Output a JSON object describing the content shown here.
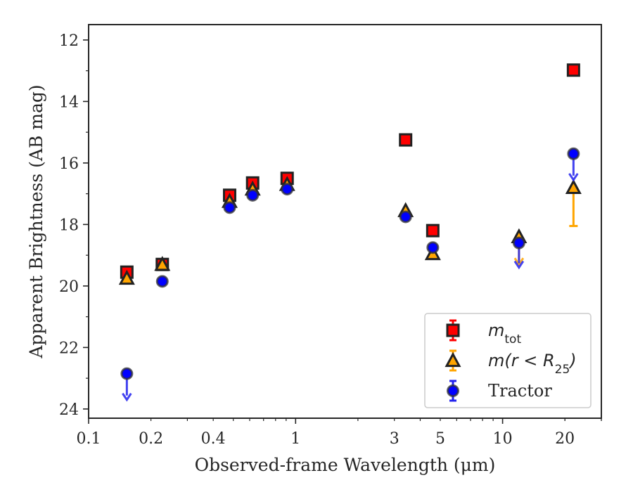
{
  "chart_data": {
    "type": "scatter",
    "xlabel": "Observed-frame Wavelength (μm)",
    "ylabel": "Apparent Brightness (AB mag)",
    "xscale": "log",
    "yaxis_inverted": true,
    "xlim": [
      0.1,
      30
    ],
    "ylim": [
      24.3,
      11.5
    ],
    "x_ticks": [
      {
        "value": 0.1,
        "label": "0.1"
      },
      {
        "value": 0.2,
        "label": "0.2"
      },
      {
        "value": 0.4,
        "label": "0.4"
      },
      {
        "value": 1,
        "label": "1"
      },
      {
        "value": 3,
        "label": "3"
      },
      {
        "value": 5,
        "label": "5"
      },
      {
        "value": 10,
        "label": "10"
      },
      {
        "value": 20,
        "label": "20"
      }
    ],
    "y_ticks": [
      {
        "value": 12,
        "label": "12"
      },
      {
        "value": 14,
        "label": "14"
      },
      {
        "value": 16,
        "label": "16"
      },
      {
        "value": 18,
        "label": "18"
      },
      {
        "value": 20,
        "label": "20"
      },
      {
        "value": 22,
        "label": "22"
      },
      {
        "value": 24,
        "label": "24"
      }
    ],
    "grid": false,
    "legend_position": "lower-right",
    "series": [
      {
        "name_main": "m",
        "name_sub": "tot",
        "marker": "square",
        "color": "#ff0000",
        "points": [
          {
            "x": 0.153,
            "y": 19.55
          },
          {
            "x": 0.227,
            "y": 19.3
          },
          {
            "x": 0.48,
            "y": 17.05
          },
          {
            "x": 0.62,
            "y": 16.65
          },
          {
            "x": 0.91,
            "y": 16.5
          },
          {
            "x": 3.4,
            "y": 15.25
          },
          {
            "x": 4.6,
            "y": 18.2
          },
          {
            "x": 22,
            "y": 12.98
          }
        ]
      },
      {
        "name_main": "m(r < R",
        "name_sub": "25",
        "name_end": ")",
        "marker": "triangle",
        "color": "#ffa500",
        "points": [
          {
            "x": 0.153,
            "y": 19.75
          },
          {
            "x": 0.227,
            "y": 19.3
          },
          {
            "x": 0.48,
            "y": 17.25
          },
          {
            "x": 0.62,
            "y": 16.85
          },
          {
            "x": 0.91,
            "y": 16.7
          },
          {
            "x": 3.4,
            "y": 17.55
          },
          {
            "x": 4.6,
            "y": 18.95
          },
          {
            "x": 12,
            "y": 18.4,
            "upper_limit_to": 19.3
          },
          {
            "x": 22,
            "y": 16.8,
            "err_low": 16.8,
            "err_high": 18.05
          }
        ]
      },
      {
        "name_main": "Tractor",
        "marker": "circle",
        "color": "#0000ff",
        "points": [
          {
            "x": 0.153,
            "y": 22.85,
            "upper_limit_to": 23.7
          },
          {
            "x": 0.227,
            "y": 19.85
          },
          {
            "x": 0.48,
            "y": 17.45
          },
          {
            "x": 0.62,
            "y": 17.05
          },
          {
            "x": 0.91,
            "y": 16.85
          },
          {
            "x": 3.4,
            "y": 17.75
          },
          {
            "x": 4.6,
            "y": 18.75
          },
          {
            "x": 12,
            "y": 18.6,
            "upper_limit_to": 19.4
          },
          {
            "x": 22,
            "y": 15.7,
            "upper_limit_to": 16.55
          }
        ]
      }
    ]
  }
}
